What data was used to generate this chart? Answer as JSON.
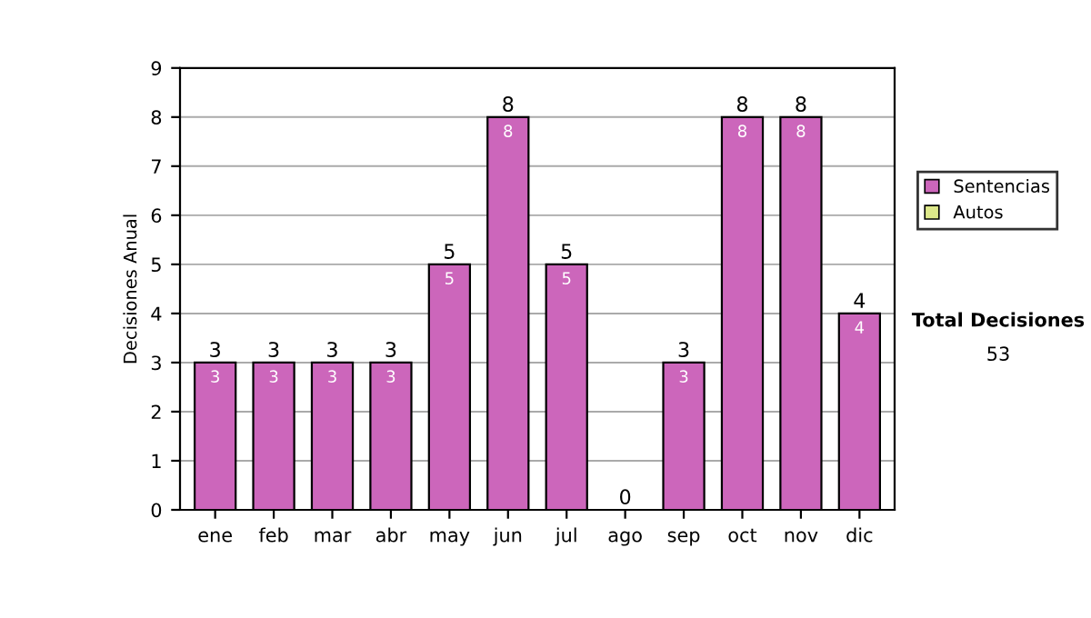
{
  "chart_data": {
    "type": "bar",
    "stacked": true,
    "ylabel": "Decisiones Anual",
    "categories": [
      "ene",
      "feb",
      "mar",
      "abr",
      "may",
      "jun",
      "jul",
      "ago",
      "sep",
      "oct",
      "nov",
      "dic"
    ],
    "series": [
      {
        "name": "Sentencias",
        "color": "#cc66bb",
        "values": [
          3,
          3,
          3,
          3,
          5,
          8,
          5,
          0,
          3,
          8,
          8,
          4
        ],
        "value_labels": [
          "3",
          "3",
          "3",
          "3",
          "5",
          "8",
          "5",
          null,
          "3",
          "8",
          "8",
          "4"
        ]
      },
      {
        "name": "Autos",
        "color": "#dde88a",
        "values": [
          0,
          0,
          0,
          0,
          0,
          0,
          0,
          0,
          0,
          0,
          0,
          0
        ]
      }
    ],
    "totals": [
      "3",
      "3",
      "3",
      "3",
      "5",
      "8",
      "5",
      "0",
      "3",
      "8",
      "8",
      "4"
    ],
    "ylim": [
      0,
      9
    ],
    "yticks": [
      0,
      1,
      2,
      3,
      4,
      5,
      6,
      7,
      8,
      9
    ],
    "grid": "y",
    "legend": "right",
    "annotations": [
      "Total Decisiones",
      "53"
    ]
  }
}
